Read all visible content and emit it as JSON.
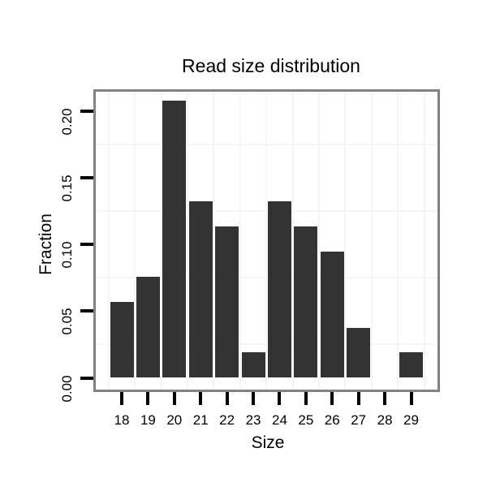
{
  "title": "Read size distribution",
  "chart_data": {
    "type": "bar",
    "title": "Read size distribution",
    "xlabel": "Size",
    "ylabel": "Fraction",
    "categories": [
      "18",
      "19",
      "20",
      "21",
      "22",
      "23",
      "24",
      "25",
      "26",
      "27",
      "28",
      "29"
    ],
    "values": [
      0.0566,
      0.0755,
      0.2075,
      0.1321,
      0.1132,
      0.0189,
      0.1321,
      0.1132,
      0.0943,
      0.0377,
      0,
      0.0189
    ],
    "yticks": [
      {
        "value": 0.0,
        "label": "0.00"
      },
      {
        "value": 0.05,
        "label": "0.05"
      },
      {
        "value": 0.1,
        "label": "0.10"
      },
      {
        "value": 0.15,
        "label": "0.15"
      },
      {
        "value": 0.2,
        "label": "0.20"
      }
    ],
    "ylim": [
      0,
      0.218
    ],
    "grid": "minor-only",
    "minor_y_gridlines": [
      0.025,
      0.075,
      0.125,
      0.175
    ],
    "legend": "none",
    "colors": {
      "bar": "#333333",
      "panel_border": "#828282",
      "gridline": "#f5f5f5",
      "tick": "#000000",
      "text": "#000000",
      "background": "#ffffff"
    }
  }
}
